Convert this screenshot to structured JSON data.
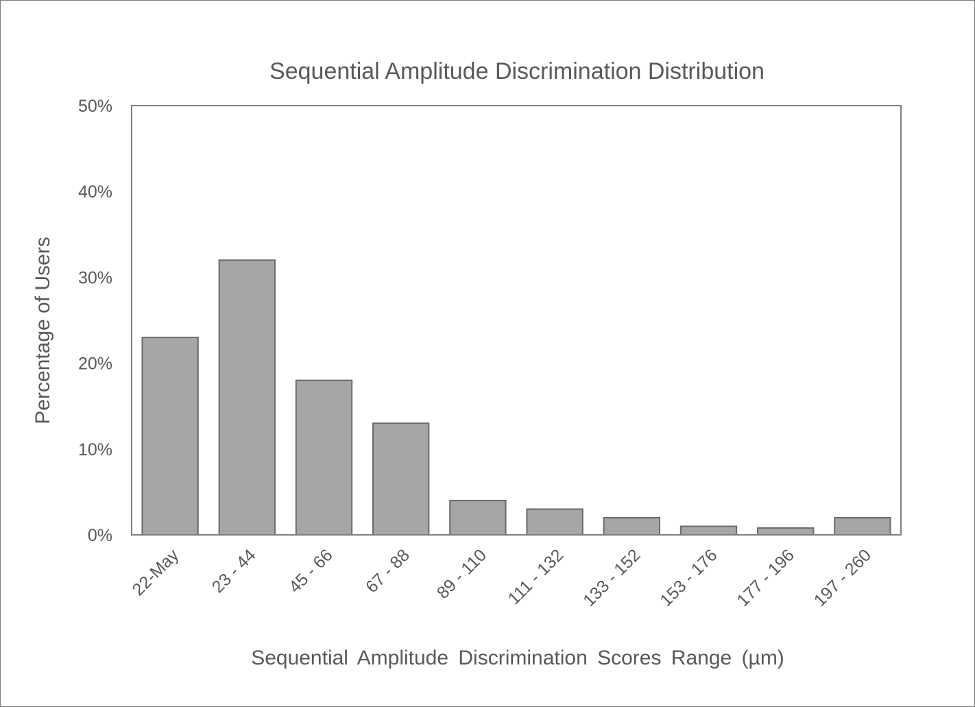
{
  "chart_data": {
    "type": "bar",
    "title": "Sequential Amplitude Discrimination Distribution",
    "xlabel": "Sequential Amplitude Discrimination Scores Range (µm)",
    "ylabel": "Percentage of Users",
    "categories": [
      "22-May",
      "23 - 44",
      "45 - 66",
      "67 - 88",
      "89 - 110",
      "111 - 132",
      "133 - 152",
      "153 - 176",
      "177 - 196",
      "197 - 260"
    ],
    "values": [
      23,
      32,
      18,
      13,
      4,
      3,
      2,
      1,
      0.8,
      2
    ],
    "ylim": [
      0,
      50
    ],
    "yticks": [
      "0%",
      "10%",
      "20%",
      "30%",
      "40%",
      "50%"
    ],
    "ytick_values": [
      0,
      10,
      20,
      30,
      40,
      50
    ],
    "grid": false,
    "legend": "none",
    "colors": {
      "bar_fill": "#a6a6a6",
      "bar_stroke": "#6b6b6b",
      "text": "#595959",
      "frame": "#808080"
    }
  }
}
